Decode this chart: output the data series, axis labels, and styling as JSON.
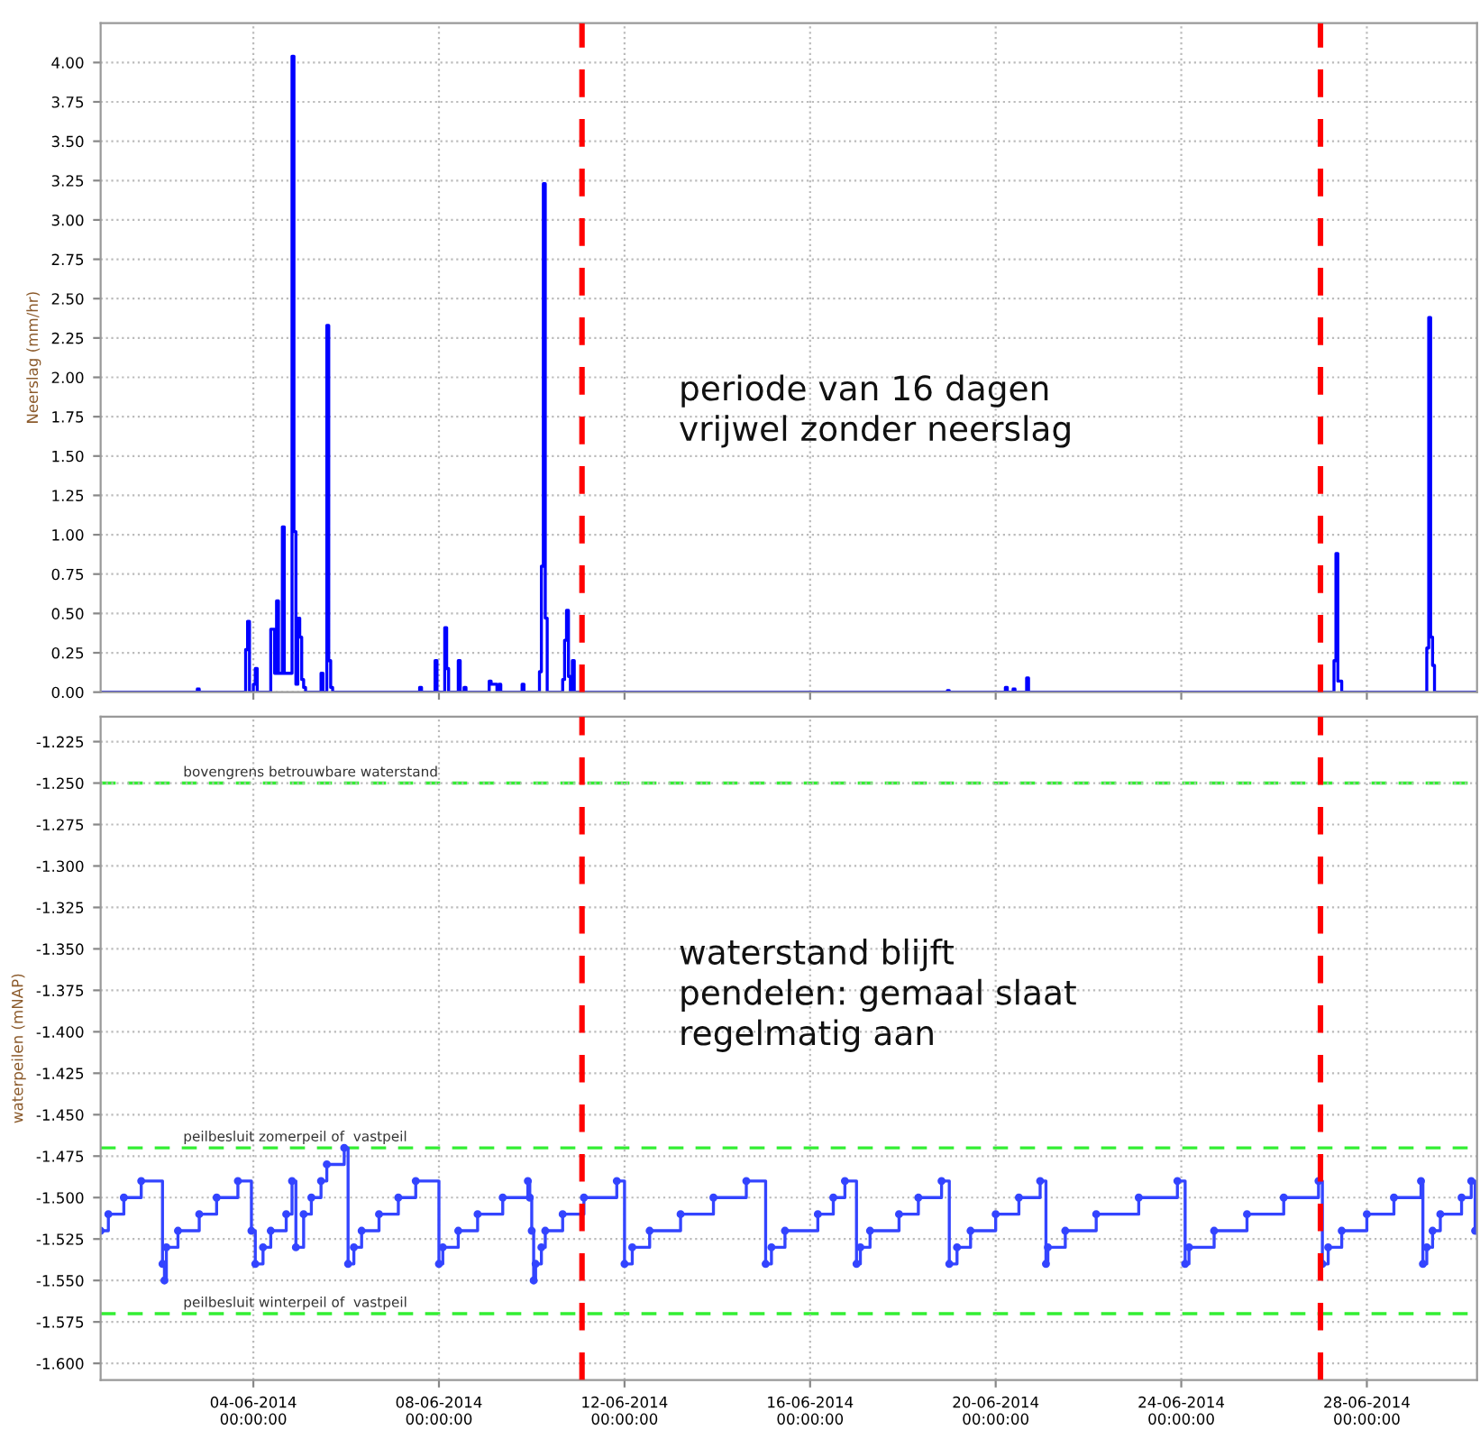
{
  "chart_data": [
    {
      "type": "step",
      "ylabel": "Neerslag (mm/hr)",
      "grid": true,
      "tick_labels": "y",
      "xlim": [
        "2014-05-31T17:00",
        "2014-06-30T09:00"
      ],
      "xticks": [
        {
          "value": "2014-06-04",
          "label": null
        },
        {
          "value": "2014-06-08",
          "label": null
        },
        {
          "value": "2014-06-12",
          "label": null
        },
        {
          "value": "2014-06-16",
          "label": null
        },
        {
          "value": "2014-06-20",
          "label": null
        },
        {
          "value": "2014-06-24",
          "label": null
        },
        {
          "value": "2014-06-28",
          "label": null
        }
      ],
      "ylim": [
        0,
        4.25
      ],
      "yticks": [
        {
          "value": 0,
          "label": "0.00"
        },
        {
          "value": 0.25,
          "label": "0.25"
        },
        {
          "value": 0.5,
          "label": "0.50"
        },
        {
          "value": 0.75,
          "label": "0.75"
        },
        {
          "value": 1,
          "label": "1.00"
        },
        {
          "value": 1.25,
          "label": "1.25"
        },
        {
          "value": 1.5,
          "label": "1.50"
        },
        {
          "value": 1.75,
          "label": "1.75"
        },
        {
          "value": 2,
          "label": "2.00"
        },
        {
          "value": 2.25,
          "label": "2.25"
        },
        {
          "value": 2.5,
          "label": "2.50"
        },
        {
          "value": 2.75,
          "label": "2.75"
        },
        {
          "value": 3,
          "label": "3.00"
        },
        {
          "value": 3.25,
          "label": "3.25"
        },
        {
          "value": 3.5,
          "label": "3.50"
        },
        {
          "value": 3.75,
          "label": "3.75"
        },
        {
          "value": 4,
          "label": "4.00"
        }
      ],
      "ref_lines": [
        {
          "axis": "x",
          "value": "2014-06-11T02:00",
          "color": "#ff0000",
          "line_style": "dashed"
        },
        {
          "axis": "x",
          "value": "2014-06-27T00:00",
          "color": "#ff0000",
          "line_style": "dashed"
        }
      ],
      "annotations": [
        "periode van 16 dagen\nvrijwel zonder neerslag"
      ],
      "series": [
        {
          "color": "#0000ff",
          "x": [
            "2014-05-31T17:00",
            "2014-06-02T18:00",
            "2014-06-02T19:00",
            "2014-06-02T20:00",
            "2014-06-03T19:00",
            "2014-06-03T20:00",
            "2014-06-03T21:00",
            "2014-06-03T22:00",
            "2014-06-04T00:00",
            "2014-06-04T01:00",
            "2014-06-04T02:00",
            "2014-06-04T09:00",
            "2014-06-04T10:00",
            "2014-06-04T11:00",
            "2014-06-04T12:00",
            "2014-06-04T13:00",
            "2014-06-04T15:00",
            "2014-06-04T16:00",
            "2014-06-04T20:00",
            "2014-06-04T21:00",
            "2014-06-04T22:00",
            "2014-06-04T23:00",
            "2014-06-05T00:00",
            "2014-06-05T01:00",
            "2014-06-05T02:00",
            "2014-06-05T03:00",
            "2014-06-05T11:00",
            "2014-06-05T12:00",
            "2014-06-05T14:00",
            "2014-06-05T15:00",
            "2014-06-05T16:00",
            "2014-06-05T17:00",
            "2014-06-07T14:00",
            "2014-06-07T15:00",
            "2014-06-07T22:00",
            "2014-06-07T23:00",
            "2014-06-08T03:00",
            "2014-06-08T04:00",
            "2014-06-08T05:00",
            "2014-06-08T10:00",
            "2014-06-08T11:00",
            "2014-06-08T13:00",
            "2014-06-08T14:00",
            "2014-06-09T02:00",
            "2014-06-09T03:00",
            "2014-06-09T05:00",
            "2014-06-09T06:00",
            "2014-06-09T07:00",
            "2014-06-09T08:00",
            "2014-06-09T19:00",
            "2014-06-09T20:00",
            "2014-06-10T04:00",
            "2014-06-10T05:00",
            "2014-06-10T06:00",
            "2014-06-10T07:00",
            "2014-06-10T08:00",
            "2014-06-10T16:00",
            "2014-06-10T17:00",
            "2014-06-10T18:00",
            "2014-06-10T19:00",
            "2014-06-10T20:00",
            "2014-06-10T21:00",
            "2014-06-10T22:00",
            "2014-06-18T23:00",
            "2014-06-19T00:00",
            "2014-06-20T05:00",
            "2014-06-20T06:00",
            "2014-06-20T09:00",
            "2014-06-20T10:00",
            "2014-06-20T16:00",
            "2014-06-20T17:00",
            "2014-06-27T07:00",
            "2014-06-27T08:00",
            "2014-06-27T09:00",
            "2014-06-27T10:00",
            "2014-06-27T11:00",
            "2014-06-29T07:00",
            "2014-06-29T08:00",
            "2014-06-29T09:00",
            "2014-06-29T10:00",
            "2014-06-29T11:00",
            "2014-06-30T09:00"
          ],
          "values": [
            0,
            0,
            0.02,
            0,
            0,
            0.27,
            0.45,
            0,
            0.05,
            0.15,
            0,
            0.4,
            0.4,
            0.12,
            0.58,
            0.12,
            1.05,
            0.12,
            4.04,
            1.02,
            0.05,
            0.47,
            0.35,
            0.08,
            0.03,
            0,
            0.12,
            0,
            2.33,
            0.2,
            0.03,
            0,
            0.03,
            0,
            0.2,
            0,
            0.41,
            0.15,
            0,
            0.2,
            0,
            0.03,
            0,
            0.07,
            0.05,
            0.05,
            0,
            0.05,
            0,
            0.05,
            0,
            0.13,
            0.8,
            3.23,
            0.47,
            0,
            0.08,
            0.33,
            0.52,
            0.1,
            0,
            0.2,
            0,
            0.01,
            0,
            0.03,
            0,
            0.02,
            0,
            0.09,
            0,
            0.2,
            0.88,
            0.07,
            0.07,
            0,
            0.28,
            2.38,
            0.35,
            0.17,
            0,
            0
          ]
        }
      ]
    },
    {
      "type": "step",
      "ylabel": "waterpeilen (mNAP)",
      "grid": true,
      "marker": "circle",
      "xlim": [
        "2014-05-31T17:00",
        "2014-06-30T09:00"
      ],
      "xticks": [
        {
          "value": "2014-06-04",
          "label": "04-06-2014\n00:00:00"
        },
        {
          "value": "2014-06-08",
          "label": "08-06-2014\n00:00:00"
        },
        {
          "value": "2014-06-12",
          "label": "12-06-2014\n00:00:00"
        },
        {
          "value": "2014-06-16",
          "label": "16-06-2014\n00:00:00"
        },
        {
          "value": "2014-06-20",
          "label": "20-06-2014\n00:00:00"
        },
        {
          "value": "2014-06-24",
          "label": "24-06-2014\n00:00:00"
        },
        {
          "value": "2014-06-28",
          "label": "28-06-2014\n00:00:00"
        }
      ],
      "ylim": [
        -1.61,
        -1.21
      ],
      "yticks": [
        {
          "value": -1.225,
          "label": "-1.225"
        },
        {
          "value": -1.25,
          "label": "-1.250"
        },
        {
          "value": -1.275,
          "label": "-1.275"
        },
        {
          "value": -1.3,
          "label": "-1.300"
        },
        {
          "value": -1.325,
          "label": "-1.325"
        },
        {
          "value": -1.35,
          "label": "-1.350"
        },
        {
          "value": -1.375,
          "label": "-1.375"
        },
        {
          "value": -1.4,
          "label": "-1.400"
        },
        {
          "value": -1.425,
          "label": "-1.425"
        },
        {
          "value": -1.45,
          "label": "-1.450"
        },
        {
          "value": -1.475,
          "label": "-1.475"
        },
        {
          "value": -1.5,
          "label": "-1.500"
        },
        {
          "value": -1.525,
          "label": "-1.525"
        },
        {
          "value": -1.55,
          "label": "-1.550"
        },
        {
          "value": -1.575,
          "label": "-1.575"
        },
        {
          "value": -1.6,
          "label": "-1.600"
        }
      ],
      "ref_lines": [
        {
          "axis": "y",
          "value": -1.25,
          "label": "bovengrens betrouwbare waterstand",
          "color": "#33ee33",
          "line_style": "dashed"
        },
        {
          "axis": "y",
          "value": -1.47,
          "label": "peilbesluit zomerpeil of  vastpeil",
          "color": "#33ee33",
          "line_style": "dashed"
        },
        {
          "axis": "y",
          "value": -1.57,
          "label": "peilbesluit winterpeil of  vastpeil",
          "color": "#33ee33",
          "line_style": "dashed"
        },
        {
          "axis": "x",
          "value": "2014-06-11T02:00",
          "color": "#ff0000",
          "line_style": "dashed"
        },
        {
          "axis": "x",
          "value": "2014-06-27T00:00",
          "color": "#ff0000",
          "line_style": "dashed"
        }
      ],
      "annotations": [
        "waterstand blijft\npendelen: gemaal slaat\nregelmatig aan"
      ],
      "series": [
        {
          "color": "#3344ff",
          "x": [
            "2014-05-31T17:00",
            "2014-05-31T21:00",
            "2014-06-01T05:00",
            "2014-06-01T14:00",
            "2014-06-02T01:00",
            "2014-06-02T02:00",
            "2014-06-02T03:00",
            "2014-06-02T09:00",
            "2014-06-02T20:00",
            "2014-06-03T05:00",
            "2014-06-03T16:00",
            "2014-06-03T23:00",
            "2014-06-04T01:00",
            "2014-06-04T05:00",
            "2014-06-04T09:00",
            "2014-06-04T17:00",
            "2014-06-04T20:00",
            "2014-06-04T22:00",
            "2014-06-05T02:00",
            "2014-06-05T06:00",
            "2014-06-05T11:00",
            "2014-06-05T14:00",
            "2014-06-05T23:00",
            "2014-06-06T01:00",
            "2014-06-06T04:00",
            "2014-06-06T08:00",
            "2014-06-06T17:00",
            "2014-06-07T03:00",
            "2014-06-07T12:00",
            "2014-06-08T00:00",
            "2014-06-08T02:00",
            "2014-06-08T10:00",
            "2014-06-08T20:00",
            "2014-06-09T09:00",
            "2014-06-09T22:00",
            "2014-06-09T23:00",
            "2014-06-10T00:00",
            "2014-06-10T01:00",
            "2014-06-10T02:00",
            "2014-06-10T05:00",
            "2014-06-10T07:00",
            "2014-06-10T16:00",
            "2014-06-11T03:00",
            "2014-06-11T20:00",
            "2014-06-12T00:00",
            "2014-06-12T04:00",
            "2014-06-12T13:00",
            "2014-06-13T05:00",
            "2014-06-13T22:00",
            "2014-06-14T15:00",
            "2014-06-15T01:00",
            "2014-06-15T04:00",
            "2014-06-15T11:00",
            "2014-06-16T04:00",
            "2014-06-16T12:00",
            "2014-06-16T18:00",
            "2014-06-17T00:00",
            "2014-06-17T02:00",
            "2014-06-17T07:00",
            "2014-06-17T22:00",
            "2014-06-18T08:00",
            "2014-06-18T20:00",
            "2014-06-19T00:00",
            "2014-06-19T04:00",
            "2014-06-19T11:00",
            "2014-06-20T00:00",
            "2014-06-20T12:00",
            "2014-06-20T23:00",
            "2014-06-21T02:00",
            "2014-06-21T03:00",
            "2014-06-21T12:00",
            "2014-06-22T04:00",
            "2014-06-23T02:00",
            "2014-06-23T22:00",
            "2014-06-24T02:00",
            "2014-06-24T04:00",
            "2014-06-24T17:00",
            "2014-06-25T10:00",
            "2014-06-26T05:00",
            "2014-06-26T23:00",
            "2014-06-27T01:00",
            "2014-06-27T04:00",
            "2014-06-27T11:00",
            "2014-06-28T00:00",
            "2014-06-28T14:00",
            "2014-06-29T04:00",
            "2014-06-29T05:00",
            "2014-06-29T07:00",
            "2014-06-29T10:00",
            "2014-06-29T14:00",
            "2014-06-30T01:00",
            "2014-06-30T06:00",
            "2014-06-30T08:00",
            "2014-06-30T09:00"
          ],
          "values": [
            -1.52,
            -1.51,
            -1.5,
            -1.49,
            -1.54,
            -1.55,
            -1.53,
            -1.52,
            -1.51,
            -1.5,
            -1.49,
            -1.52,
            -1.54,
            -1.53,
            -1.52,
            -1.51,
            -1.49,
            -1.53,
            -1.51,
            -1.5,
            -1.49,
            -1.48,
            -1.47,
            -1.54,
            -1.53,
            -1.52,
            -1.51,
            -1.5,
            -1.49,
            -1.54,
            -1.53,
            -1.52,
            -1.51,
            -1.5,
            -1.49,
            -1.5,
            -1.52,
            -1.55,
            -1.54,
            -1.53,
            -1.52,
            -1.51,
            -1.5,
            -1.49,
            -1.54,
            -1.53,
            -1.52,
            -1.51,
            -1.5,
            -1.49,
            -1.54,
            -1.53,
            -1.52,
            -1.51,
            -1.5,
            -1.49,
            -1.54,
            -1.53,
            -1.52,
            -1.51,
            -1.5,
            -1.49,
            -1.54,
            -1.53,
            -1.52,
            -1.51,
            -1.5,
            -1.49,
            -1.54,
            -1.53,
            -1.52,
            -1.51,
            -1.5,
            -1.49,
            -1.54,
            -1.53,
            -1.52,
            -1.51,
            -1.5,
            -1.49,
            -1.54,
            -1.53,
            -1.52,
            -1.51,
            -1.5,
            -1.49,
            -1.54,
            -1.53,
            -1.52,
            -1.51,
            -1.5,
            -1.49,
            -1.52,
            -1.52
          ]
        }
      ]
    }
  ]
}
